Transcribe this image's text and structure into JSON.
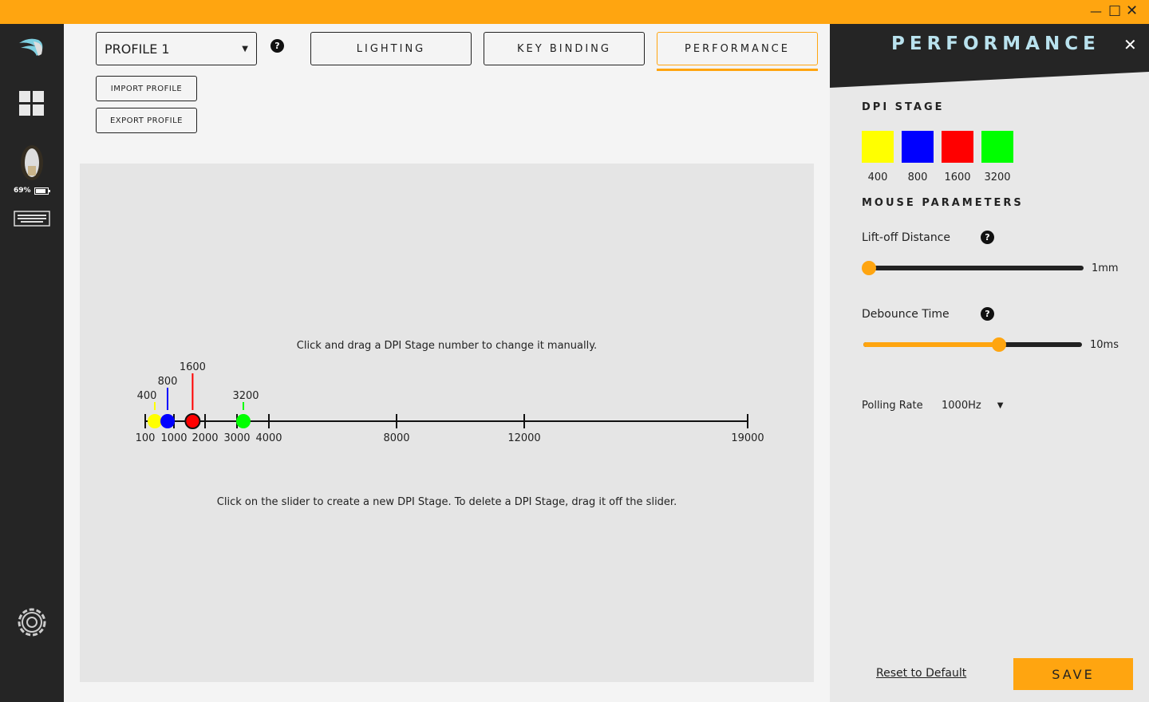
{
  "window": {
    "accent": "#ffa510",
    "controls": [
      "minimize-icon",
      "maximize-icon",
      "close-icon"
    ]
  },
  "sidebar": {
    "battery": "69%",
    "icons": [
      "logo-icon",
      "dashboard-icon",
      "mouse-icon",
      "keyboard-icon",
      "gear-icon"
    ]
  },
  "header": {
    "profile": "PROFILE 1",
    "import": "IMPORT PROFILE",
    "export": "EXPORT PROFILE",
    "tabs": [
      {
        "label": "LIGHTING"
      },
      {
        "label": "KEY BINDING"
      },
      {
        "label": "PERFORMANCE",
        "active": true
      }
    ]
  },
  "dpi_slider": {
    "hint_top": "Click and drag a DPI Stage number to change it manually.",
    "hint_bottom": "Click on the slider to create a new DPI Stage. To delete a DPI Stage, drag it off the slider.",
    "ticks": [
      100,
      1000,
      2000,
      3000,
      4000,
      8000,
      12000,
      19000
    ],
    "stages": [
      {
        "value": 400,
        "color": "#ffff00"
      },
      {
        "value": 800,
        "color": "#0000ff"
      },
      {
        "value": 1600,
        "color": "#ff0000",
        "selected": true
      },
      {
        "value": 3200,
        "color": "#00ff00"
      }
    ]
  },
  "right": {
    "title": "PERFORMANCE",
    "dpi_stage": "DPI STAGE",
    "swatches": [
      {
        "label": "400",
        "color": "#ffff00"
      },
      {
        "label": "800",
        "color": "#0000ff"
      },
      {
        "label": "1600",
        "color": "#ff0000"
      },
      {
        "label": "3200",
        "color": "#00ff00"
      }
    ],
    "mouse_params": "MOUSE PARAMETERS",
    "liftoff": {
      "label": "Lift-off Distance",
      "value": "1mm",
      "fraction": 0
    },
    "debounce": {
      "label": "Debounce Time",
      "value": "10ms",
      "fraction": 0.62
    },
    "polling": {
      "label": "Polling Rate",
      "value": "1000Hz"
    },
    "reset": "Reset to Default",
    "save": "SAVE"
  }
}
